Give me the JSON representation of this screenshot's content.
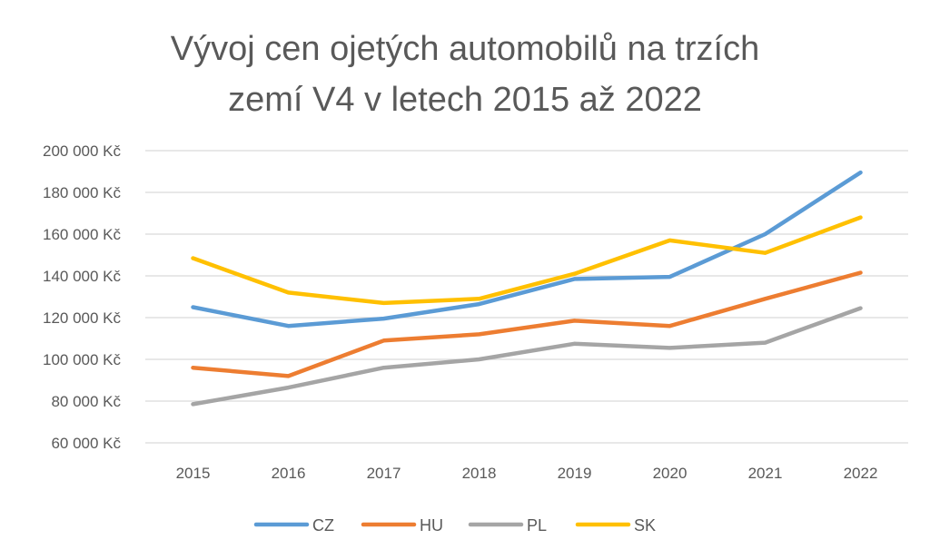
{
  "chart_data": {
    "type": "line",
    "title_lines": [
      "Vývoj cen ojetých automobilů na trzích",
      "zemí V4 v letech 2015 až 2022"
    ],
    "categories": [
      "2015",
      "2016",
      "2017",
      "2018",
      "2019",
      "2020",
      "2021",
      "2022"
    ],
    "ylim": [
      60000,
      200000
    ],
    "yticks": [
      {
        "value": 60000,
        "label": "60 000 Kč"
      },
      {
        "value": 80000,
        "label": "80 000 Kč"
      },
      {
        "value": 100000,
        "label": "100 000 Kč"
      },
      {
        "value": 120000,
        "label": "120 000 Kč"
      },
      {
        "value": 140000,
        "label": "140 000 Kč"
      },
      {
        "value": 160000,
        "label": "160 000 Kč"
      },
      {
        "value": 180000,
        "label": "180 000 Kč"
      },
      {
        "value": 200000,
        "label": "200 000 Kč"
      }
    ],
    "grid": true,
    "legend_position": "bottom",
    "series": [
      {
        "name": "CZ",
        "color": "#5B9BD5",
        "values": [
          125000,
          116000,
          119500,
          126500,
          138500,
          139500,
          160000,
          189500
        ]
      },
      {
        "name": "HU",
        "color": "#ED7D31",
        "values": [
          96000,
          92000,
          109000,
          112000,
          118500,
          116000,
          129000,
          141500
        ]
      },
      {
        "name": "PL",
        "color": "#A5A5A5",
        "values": [
          78500,
          86500,
          96000,
          100000,
          107500,
          105500,
          108000,
          124500
        ]
      },
      {
        "name": "SK",
        "color": "#FFC000",
        "values": [
          148500,
          132000,
          127000,
          129000,
          141000,
          157000,
          151000,
          168000
        ]
      }
    ]
  }
}
